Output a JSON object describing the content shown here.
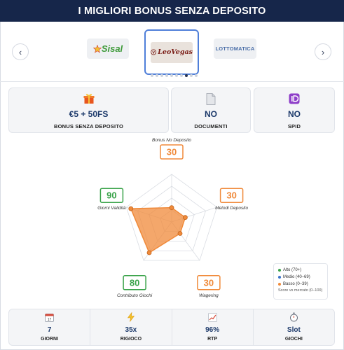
{
  "header": {
    "title": "I MIGLIORI BONUS SENZA DEPOSITO"
  },
  "carousel": {
    "prev_icon": "chevron-left-icon",
    "next_icon": "chevron-right-icon",
    "logos": [
      {
        "name": "Sisal",
        "selected": false
      },
      {
        "name": "LeoVegas",
        "selected": true
      },
      {
        "name": "LOTTOMATICA",
        "selected": false
      }
    ],
    "dots_total": 10,
    "dots_active": 8
  },
  "stats": {
    "bonus": {
      "icon": "gift-icon",
      "value": "€5 + 50FS",
      "label": "BONUS SENZA DEPOSITO"
    },
    "documents": {
      "icon": "document-icon",
      "value": "NO",
      "label": "DOCUMENTI"
    },
    "spid": {
      "icon": "spid-icon",
      "value": "NO",
      "label": "SPID"
    }
  },
  "chart_data": {
    "type": "radar",
    "max": 100,
    "axes": [
      {
        "label": "Bonus No Deposito",
        "score": 30,
        "band": "Basso"
      },
      {
        "label": "Metodi Deposito",
        "score": 30,
        "band": "Basso"
      },
      {
        "label": "Wagering",
        "score": 30,
        "band": "Basso"
      },
      {
        "label": "Contributo Giochi",
        "score": 80,
        "band": "Alto"
      },
      {
        "label": "Giorni Validità",
        "score": 90,
        "band": "Alto"
      }
    ],
    "fill_color": "#f08a3a",
    "grid_levels": 4
  },
  "legend": {
    "items": [
      {
        "label": "Alto (70+)",
        "color": "#3aa34a"
      },
      {
        "label": "Medio (40–69)",
        "color": "#3b73c9"
      },
      {
        "label": "Basso (0–39)",
        "color": "#f08a3a"
      }
    ],
    "note": "Score vs mercato (0–100)"
  },
  "colors": {
    "Alto": "#3aa34a",
    "Medio": "#3b73c9",
    "Basso": "#f08a3a",
    "header_bg": "#16264a"
  },
  "bottom": [
    {
      "icon": "calendar-icon",
      "value": "7",
      "label": "GIORNI"
    },
    {
      "icon": "lightning-icon",
      "value": "35x",
      "label": "RIGIOCO"
    },
    {
      "icon": "chart-up-icon",
      "value": "96%",
      "label": "RTP"
    },
    {
      "icon": "stopwatch-icon",
      "value": "Slot",
      "label": "GIOCHI"
    }
  ]
}
